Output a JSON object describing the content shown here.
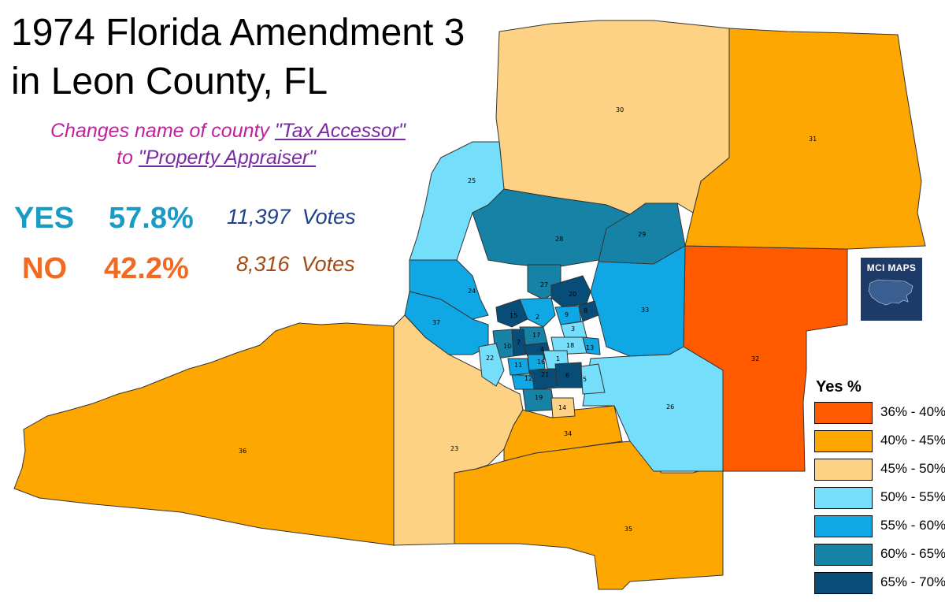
{
  "title_line1": "1974 Florida Amendment 3",
  "title_line2": "in Leon County, FL",
  "description": {
    "line1_prefix": "Changes name of county ",
    "line1_link": "\"Tax Accessor\"",
    "line2_prefix": "to ",
    "line2_link": "\"Property Appraiser\""
  },
  "results": {
    "yes": {
      "label": "YES",
      "percent": "57.8%",
      "votes": "11,397",
      "votes_word": "Votes"
    },
    "no": {
      "label": "NO",
      "percent": "42.2%",
      "votes": "8,316",
      "votes_word": "Votes"
    }
  },
  "badge": {
    "text": "MCI MAPS"
  },
  "legend": {
    "title": "Yes  %",
    "items": [
      {
        "label": "36% - 40%",
        "color": "#ff5a00"
      },
      {
        "label": "40% - 45%",
        "color": "#fea700"
      },
      {
        "label": "45% - 50%",
        "color": "#fdd285"
      },
      {
        "label": "50% - 55%",
        "color": "#75defa"
      },
      {
        "label": "55% - 60%",
        "color": "#0fa8e4"
      },
      {
        "label": "60% - 65%",
        "color": "#1683a6"
      },
      {
        "label": "65% - 70%",
        "color": "#084d78"
      }
    ]
  },
  "precincts": [
    "1",
    "2",
    "3",
    "4",
    "5",
    "6",
    "8",
    "9",
    "10",
    "11",
    "12",
    "13",
    "14",
    "15",
    "16",
    "17",
    "18",
    "19",
    "20",
    "21",
    "22",
    "23",
    "24",
    "25",
    "26",
    "27",
    "28",
    "29",
    "30",
    "31",
    "32",
    "33",
    "34",
    "35",
    "36",
    "37"
  ]
}
